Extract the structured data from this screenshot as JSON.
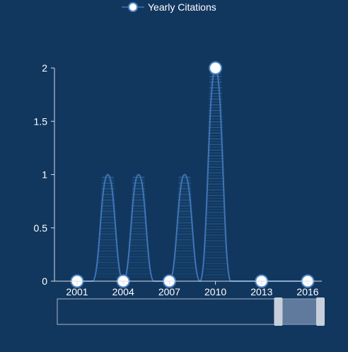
{
  "legend": {
    "label": "Yearly Citations",
    "line_color": "#3f76b8",
    "marker_fill": "#ffffff",
    "marker_stroke": "#4f86c6",
    "placement": "top-center"
  },
  "colors": {
    "background": "#12375f",
    "axis": "#d6dde6",
    "label_text": "#ffffff",
    "line": "#3f76b8",
    "stripe": "#2a5d90",
    "stripe_alt": "#1d4f78",
    "marker_fill": "#ffffff",
    "marker_stroke": "#4f86c6",
    "zoom_border": "#a9b6c6",
    "zoom_fill": "#7a92b2",
    "zoom_handle": "#c6cfdb"
  },
  "chart_data": {
    "type": "line",
    "title": "",
    "xlabel": "",
    "ylabel": "",
    "x": [
      2001,
      2002,
      2003,
      2004,
      2005,
      2006,
      2007,
      2008,
      2009,
      2010,
      2011,
      2012,
      2013,
      2014,
      2015,
      2016
    ],
    "series": [
      {
        "name": "Yearly Citations",
        "values": [
          0,
          0,
          1,
          0,
          1,
          0,
          0,
          1,
          0,
          2,
          0,
          0,
          0,
          0,
          0,
          0
        ]
      }
    ],
    "x_tick_labels": [
      "2001",
      "2004",
      "2007",
      "2010",
      "2013",
      "2016"
    ],
    "y_tick_labels": [
      "0",
      "0.5",
      "1",
      "1.5",
      "2"
    ],
    "ylim": [
      0,
      2
    ],
    "grid": false,
    "legend_position": "top-center",
    "marker_years": [
      2001,
      2004,
      2007,
      2010,
      2013,
      2016
    ],
    "zoom_range_fraction": [
      0.84,
      1.0
    ]
  }
}
